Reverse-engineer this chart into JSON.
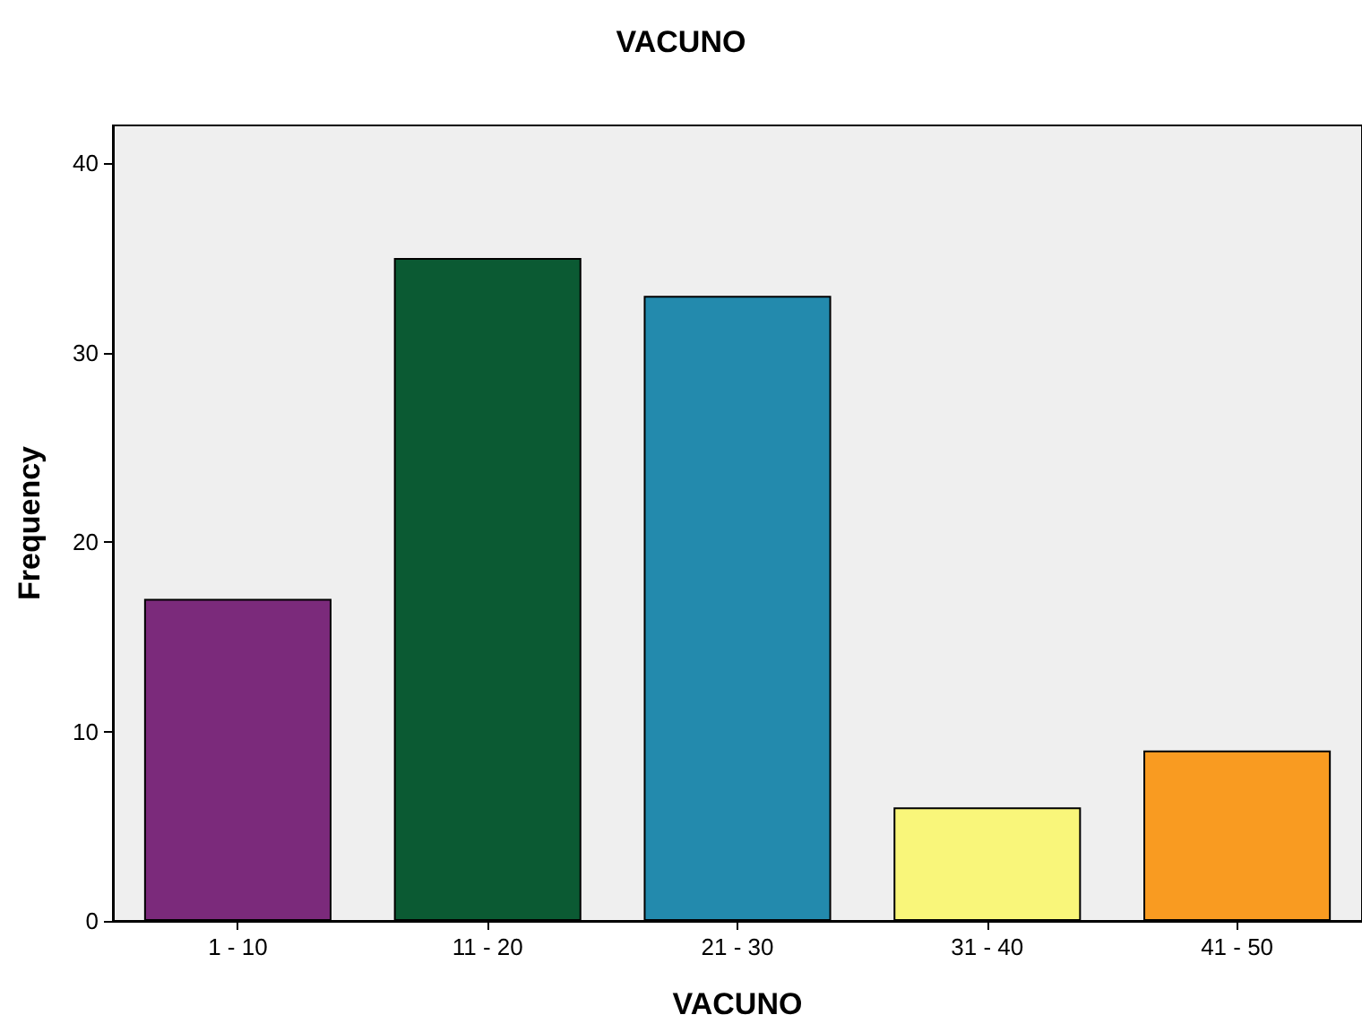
{
  "chart_data": {
    "type": "bar",
    "title": "VACUNO",
    "xlabel": "VACUNO",
    "ylabel": "Frequency",
    "categories": [
      "1 - 10",
      "11 - 20",
      "21 - 30",
      "31 - 40",
      "41 - 50"
    ],
    "values": [
      17,
      35,
      33,
      6,
      9
    ],
    "colors": [
      "#7b2a7b",
      "#0b5a33",
      "#238aad",
      "#f9f67a",
      "#f99b21"
    ],
    "ylim": [
      0,
      42
    ],
    "yticks": [
      0,
      10,
      20,
      30,
      40
    ]
  }
}
